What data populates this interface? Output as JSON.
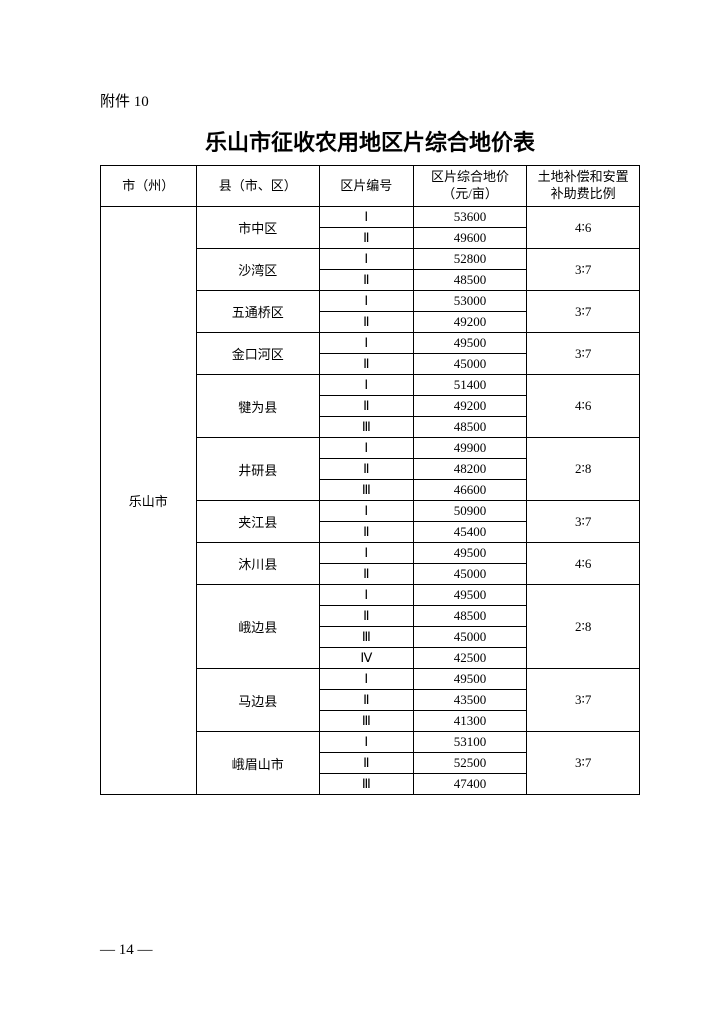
{
  "attachment_label": "附件 10",
  "title": "乐山市征收农用地区片综合地价表",
  "headers": {
    "city": "市（州）",
    "county": "县（市、区）",
    "zone_code": "区片编号",
    "price": "区片综合地价（元/亩）",
    "ratio": "土地补偿和安置补助费比例"
  },
  "city": "乐山市",
  "counties": [
    {
      "name": "市中区",
      "zones": [
        [
          "Ⅰ",
          "53600"
        ],
        [
          "Ⅱ",
          "49600"
        ]
      ],
      "ratio": "4∶6"
    },
    {
      "name": "沙湾区",
      "zones": [
        [
          "Ⅰ",
          "52800"
        ],
        [
          "Ⅱ",
          "48500"
        ]
      ],
      "ratio": "3∶7"
    },
    {
      "name": "五通桥区",
      "zones": [
        [
          "Ⅰ",
          "53000"
        ],
        [
          "Ⅱ",
          "49200"
        ]
      ],
      "ratio": "3∶7"
    },
    {
      "name": "金口河区",
      "zones": [
        [
          "Ⅰ",
          "49500"
        ],
        [
          "Ⅱ",
          "45000"
        ]
      ],
      "ratio": "3∶7"
    },
    {
      "name": "犍为县",
      "zones": [
        [
          "Ⅰ",
          "51400"
        ],
        [
          "Ⅱ",
          "49200"
        ],
        [
          "Ⅲ",
          "48500"
        ]
      ],
      "ratio": "4∶6"
    },
    {
      "name": "井研县",
      "zones": [
        [
          "Ⅰ",
          "49900"
        ],
        [
          "Ⅱ",
          "48200"
        ],
        [
          "Ⅲ",
          "46600"
        ]
      ],
      "ratio": "2∶8"
    },
    {
      "name": "夹江县",
      "zones": [
        [
          "Ⅰ",
          "50900"
        ],
        [
          "Ⅱ",
          "45400"
        ]
      ],
      "ratio": "3∶7"
    },
    {
      "name": "沐川县",
      "zones": [
        [
          "Ⅰ",
          "49500"
        ],
        [
          "Ⅱ",
          "45000"
        ]
      ],
      "ratio": "4∶6"
    },
    {
      "name": "峨边县",
      "zones": [
        [
          "Ⅰ",
          "49500"
        ],
        [
          "Ⅱ",
          "48500"
        ],
        [
          "Ⅲ",
          "45000"
        ],
        [
          "Ⅳ",
          "42500"
        ]
      ],
      "ratio": "2∶8"
    },
    {
      "name": "马边县",
      "zones": [
        [
          "Ⅰ",
          "49500"
        ],
        [
          "Ⅱ",
          "43500"
        ],
        [
          "Ⅲ",
          "41300"
        ]
      ],
      "ratio": "3∶7"
    },
    {
      "name": "峨眉山市",
      "zones": [
        [
          "Ⅰ",
          "53100"
        ],
        [
          "Ⅱ",
          "52500"
        ],
        [
          "Ⅲ",
          "47400"
        ]
      ],
      "ratio": "3∶7"
    }
  ],
  "page_number": "— 14 —"
}
